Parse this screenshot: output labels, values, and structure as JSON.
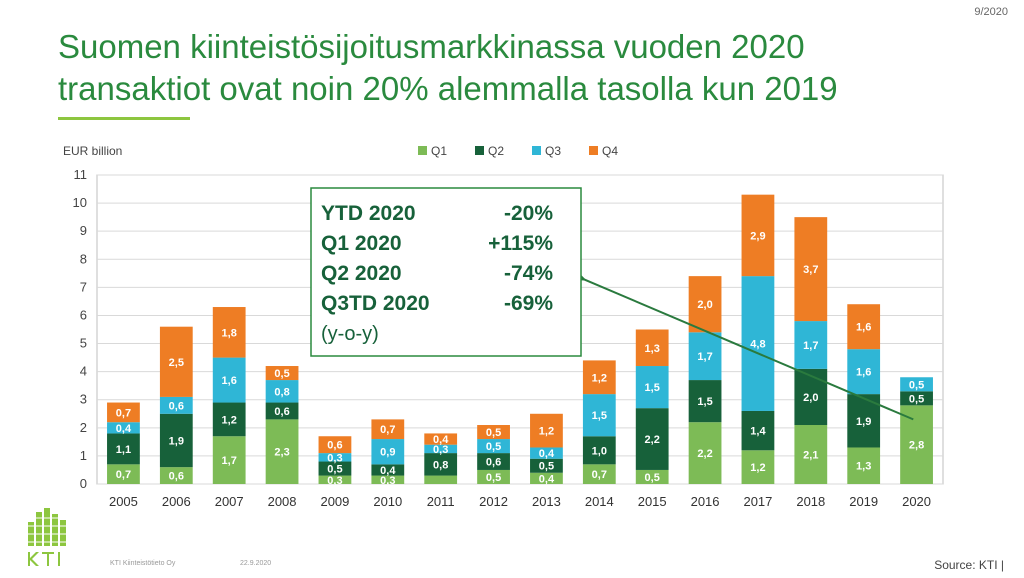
{
  "page_number": "9/2020",
  "title_line1": "Suomen kiinteistösijoitusmarkkinassa vuoden 2020",
  "title_line2": "transaktiot ovat noin 20% alemmalla tasolla kun 2019",
  "footer": {
    "company": "KTI Kiinteistötieto Oy",
    "date": "22.9.2020",
    "source": "Source: KTI |"
  },
  "colors": {
    "Q1": "#7dbb56",
    "Q2": "#17613a",
    "Q3": "#2fb6d6",
    "Q4": "#ee7d24",
    "title": "#2a8a3e"
  },
  "chart_data": {
    "type": "bar",
    "stacked": true,
    "ylabel": "EUR billion",
    "ylim": [
      0,
      11
    ],
    "yticks": [
      0,
      1,
      2,
      3,
      4,
      5,
      6,
      7,
      8,
      9,
      10,
      11
    ],
    "grid": true,
    "legend_position": "top",
    "categories": [
      "2005",
      "2006",
      "2007",
      "2008",
      "2009",
      "2010",
      "2011",
      "2012",
      "2013",
      "2014",
      "2015",
      "2016",
      "2017",
      "2018",
      "2019",
      "2020"
    ],
    "series": [
      {
        "name": "Q1",
        "values": [
          0.7,
          0.6,
          1.7,
          2.3,
          0.3,
          0.3,
          0.3,
          0.5,
          0.4,
          0.7,
          0.5,
          2.2,
          1.2,
          2.1,
          1.3,
          2.8
        ],
        "labels": [
          "0,7",
          "0,6",
          "1,7",
          "2,3",
          "0,3",
          "0,3",
          "",
          "0,5",
          "0,4",
          "0,7",
          "0,5",
          "2,2",
          "1,2",
          "2,1",
          "1,3",
          "2,8"
        ]
      },
      {
        "name": "Q2",
        "values": [
          1.1,
          1.9,
          1.2,
          0.6,
          0.5,
          0.4,
          0.8,
          0.6,
          0.5,
          1.0,
          2.2,
          1.5,
          1.4,
          2.0,
          1.9,
          0.5
        ],
        "labels": [
          "1,1",
          "1,9",
          "1,2",
          "0,6",
          "0,5",
          "0,4",
          "0,8",
          "0,6",
          "0,5",
          "1,0",
          "2,2",
          "1,5",
          "1,4",
          "2,0",
          "1,9",
          "0,5"
        ]
      },
      {
        "name": "Q3",
        "values": [
          0.4,
          0.6,
          1.6,
          0.8,
          0.3,
          0.9,
          0.3,
          0.5,
          0.4,
          1.5,
          1.5,
          1.7,
          4.8,
          1.7,
          1.6,
          0.5
        ],
        "labels": [
          "0,4",
          "0,6",
          "1,6",
          "0,8",
          "0,3",
          "0,9",
          "0,3",
          "0,5",
          "0,4",
          "1,5",
          "1,5",
          "1,7",
          "4,8",
          "1,7",
          "1,6",
          "0,5"
        ]
      },
      {
        "name": "Q4",
        "values": [
          0.7,
          2.5,
          1.8,
          0.5,
          0.6,
          0.7,
          0.4,
          0.5,
          1.2,
          1.2,
          1.3,
          2.0,
          2.9,
          3.7,
          1.6,
          0
        ],
        "labels": [
          "0,7",
          "2,5",
          "1,8",
          "0,5",
          "0,6",
          "0,7",
          "0,4",
          "0,5",
          "1,2",
          "1,2",
          "1,3",
          "2,0",
          "2,9",
          "3,7",
          "1,6",
          ""
        ]
      }
    ],
    "callout": {
      "rows": [
        {
          "label": "YTD 2020",
          "value": "-20%"
        },
        {
          "label": "Q1 2020",
          "value": "+115%"
        },
        {
          "label": "Q2 2020",
          "value": "-74%"
        },
        {
          "label": "Q3TD 2020",
          "value": "-69%"
        }
      ],
      "note": "(y-o-y)"
    }
  }
}
